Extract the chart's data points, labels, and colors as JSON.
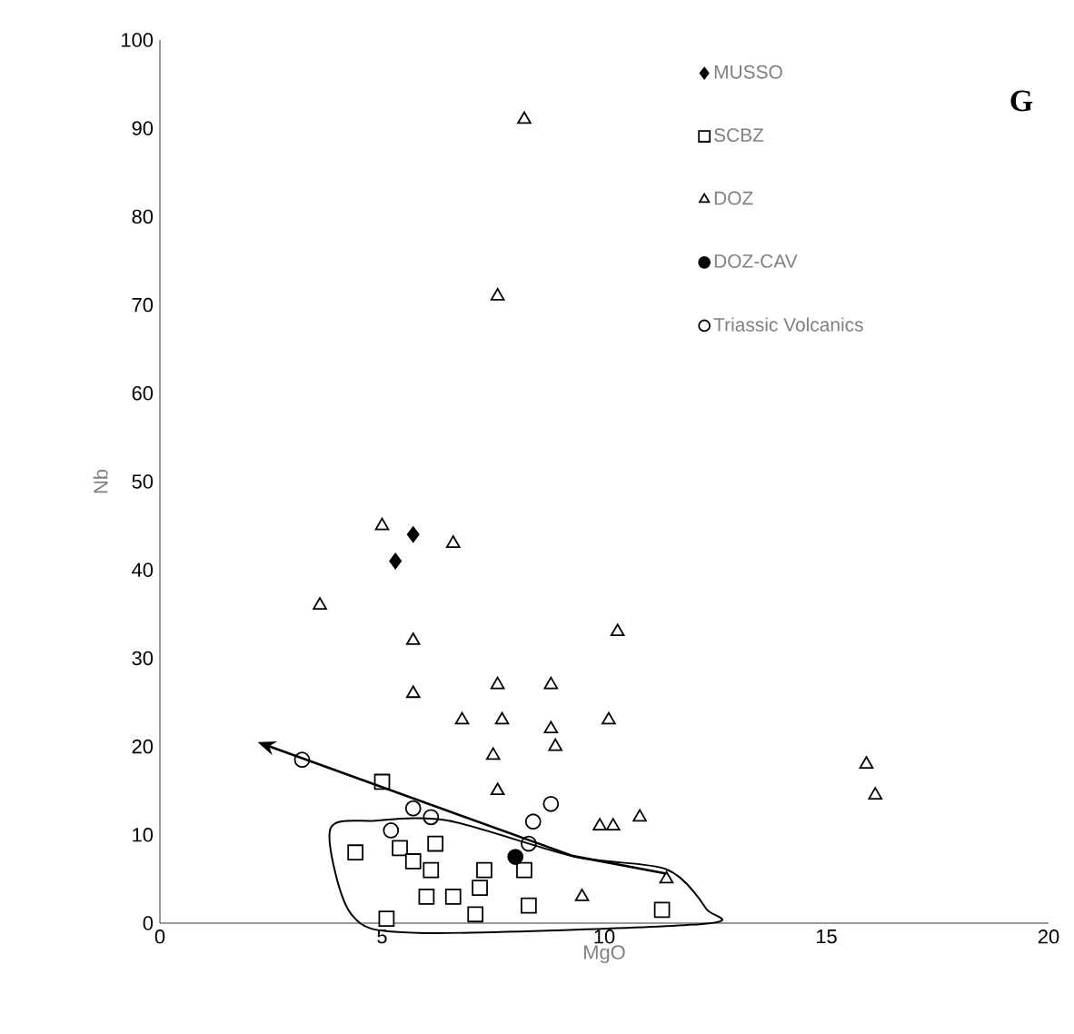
{
  "chart_data": {
    "type": "scatter",
    "xlabel": "MgO",
    "ylabel": "Nb",
    "xlim": [
      0,
      20
    ],
    "ylim": [
      0,
      100
    ],
    "xticks": [
      0,
      5,
      10,
      15,
      20
    ],
    "yticks": [
      0,
      10,
      20,
      30,
      40,
      50,
      60,
      70,
      80,
      90,
      100
    ],
    "legend": "top right",
    "annotations": [
      "G"
    ],
    "series": [
      {
        "name": "MUSSO",
        "color": "#000000",
        "marker": "diamond",
        "x": [
          5.3,
          5.7
        ],
        "values": [
          41,
          44
        ]
      },
      {
        "name": "SCBZ",
        "color": "#000000",
        "marker": "square",
        "x": [
          5.0,
          4.4,
          5.4,
          5.7,
          6.2,
          6.1,
          7.3,
          8.2,
          6.0,
          6.6,
          7.2,
          7.1,
          8.3,
          5.1,
          11.3
        ],
        "values": [
          16,
          8,
          8.5,
          7,
          9,
          6,
          6,
          6,
          3,
          3,
          4,
          1,
          2,
          0.5,
          1.5
        ]
      },
      {
        "name": "DOZ",
        "color": "#000000",
        "marker": "triangle",
        "x": [
          8.2,
          7.6,
          5.0,
          6.6,
          3.6,
          5.7,
          10.3,
          5.7,
          7.6,
          8.8,
          6.8,
          7.7,
          8.8,
          8.9,
          10.1,
          7.5,
          7.6,
          9.9,
          10.2,
          10.8,
          11.4,
          9.5,
          15.9,
          16.1
        ],
        "values": [
          91,
          71,
          45,
          43,
          36,
          32,
          33,
          26,
          27,
          27,
          23,
          23,
          22,
          20,
          23,
          19,
          15,
          11,
          11,
          12,
          5,
          3,
          18,
          14.5
        ]
      },
      {
        "name": "DOZ-CAV",
        "color": "#000000",
        "marker": "circle",
        "x": [
          8.0
        ],
        "values": [
          7.5
        ]
      },
      {
        "name": "Triassic Volcanics",
        "color": "#000000",
        "marker": "circle",
        "x": [
          3.2,
          5.2,
          5.7,
          6.1,
          8.4,
          8.8,
          8.3
        ],
        "values": [
          18.5,
          10.5,
          13,
          12,
          11.5,
          13.5,
          9
        ]
      }
    ]
  }
}
